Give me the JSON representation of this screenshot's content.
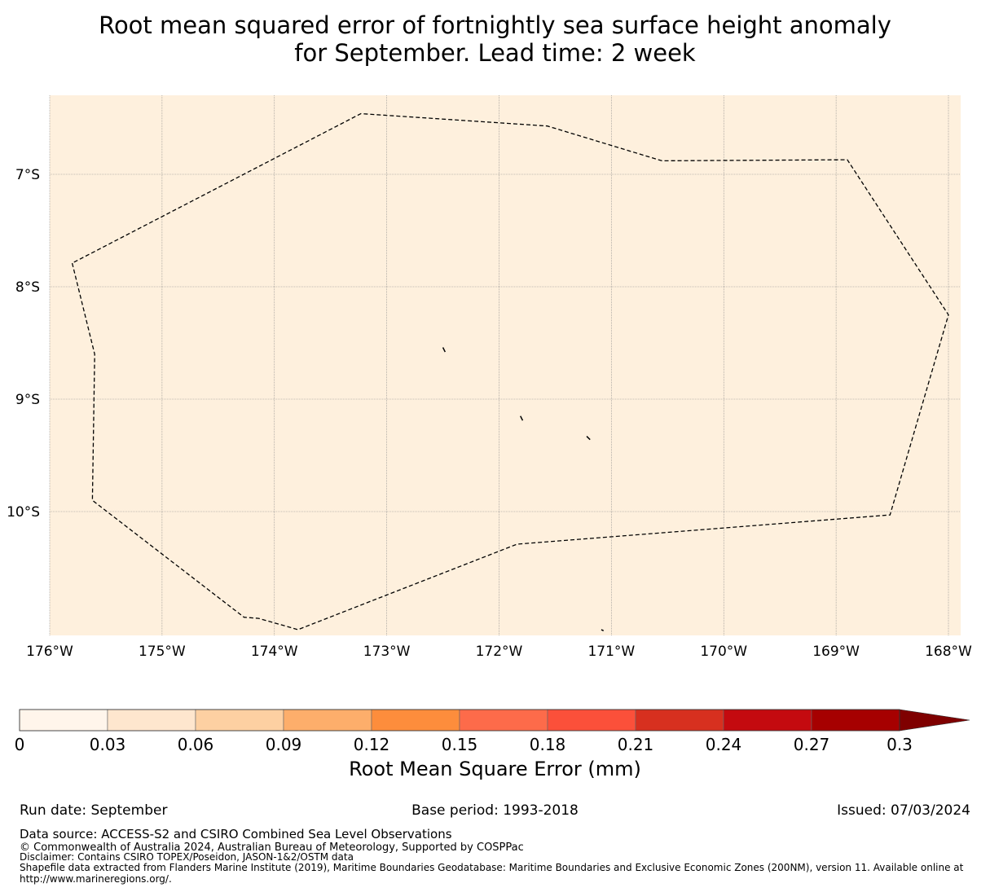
{
  "title": {
    "line1": "Root mean squared error of fortnightly sea surface height anomaly",
    "line2": "for September. Lead time: 2 week"
  },
  "map": {
    "background_color": "#fef0dd",
    "lat_labels": [
      "7°S",
      "8°S",
      "9°S",
      "10°S"
    ],
    "lon_labels": [
      "176°W",
      "175°W",
      "174°W",
      "173°W",
      "172°W",
      "171°W",
      "170°W",
      "169°W",
      "168°W"
    ],
    "lat_values": [
      -7,
      -8,
      -9,
      -10
    ],
    "lon_values": [
      -176,
      -175,
      -174,
      -173,
      -172,
      -171,
      -170,
      -169,
      -168
    ],
    "extent": {
      "lon_min": -176,
      "lon_max": -167.9,
      "lat_min": -11.1,
      "lat_max": -6.3
    },
    "eez_boundary": [
      [
        -175.8,
        -7.79
      ],
      [
        -175.6,
        -8.6
      ],
      [
        -175.62,
        -9.9
      ],
      [
        -174.27,
        -10.94
      ],
      [
        -174.14,
        -10.95
      ],
      [
        -173.79,
        -11.05
      ],
      [
        -171.84,
        -10.29
      ],
      [
        -168.52,
        -10.03
      ],
      [
        -168.0,
        -8.25
      ],
      [
        -168.9,
        -6.87
      ],
      [
        -170.55,
        -6.88
      ],
      [
        -171.57,
        -6.57
      ],
      [
        -173.23,
        -6.46
      ],
      [
        -175.8,
        -7.79
      ]
    ],
    "islands": [
      [
        [
          -172.5,
          -8.54
        ],
        [
          -172.48,
          -8.58
        ]
      ],
      [
        [
          -171.81,
          -9.15
        ],
        [
          -171.79,
          -9.19
        ]
      ],
      [
        [
          -171.22,
          -9.33
        ],
        [
          -171.19,
          -9.36
        ]
      ],
      [
        [
          -171.09,
          -11.05
        ],
        [
          -171.07,
          -11.06
        ]
      ]
    ]
  },
  "colorbar": {
    "ticks": [
      "0",
      "0.03",
      "0.06",
      "0.09",
      "0.12",
      "0.15",
      "0.18",
      "0.21",
      "0.24",
      "0.27",
      "0.3"
    ],
    "colors": [
      "#fff5eb",
      "#fee6ce",
      "#fdd0a2",
      "#fdae6b",
      "#fd8d3c",
      "#fd6b4a",
      "#fb503a",
      "#d7301f",
      "#c40a0f",
      "#a60000"
    ],
    "extend_color": "#7f0000",
    "label": "Root Mean Square Error (mm)"
  },
  "footer": {
    "run_date": "Run date: September",
    "base_period": "Base period: 1993-2018",
    "issued": "Issued: 07/03/2024",
    "data_source": "Data source: ACCESS-S2 and CSIRO Combined Sea Level Observations",
    "copyright": "© Commonwealth of Australia 2024, Australian Bureau of Meteorology, Supported by COSPPac",
    "disclaimer": "Disclaimer: Contains CSIRO TOPEX/Poseidon, JASON-1&2/OSTM data",
    "shapefile_line1": "Shapefile data extracted from Flanders Marine Institute (2019), Maritime Boundaries Geodatabase: Maritime Boundaries and Exclusive Economic Zones (200NM), version 11. Available online at",
    "shapefile_line2": "http://www.marineregions.org/."
  }
}
